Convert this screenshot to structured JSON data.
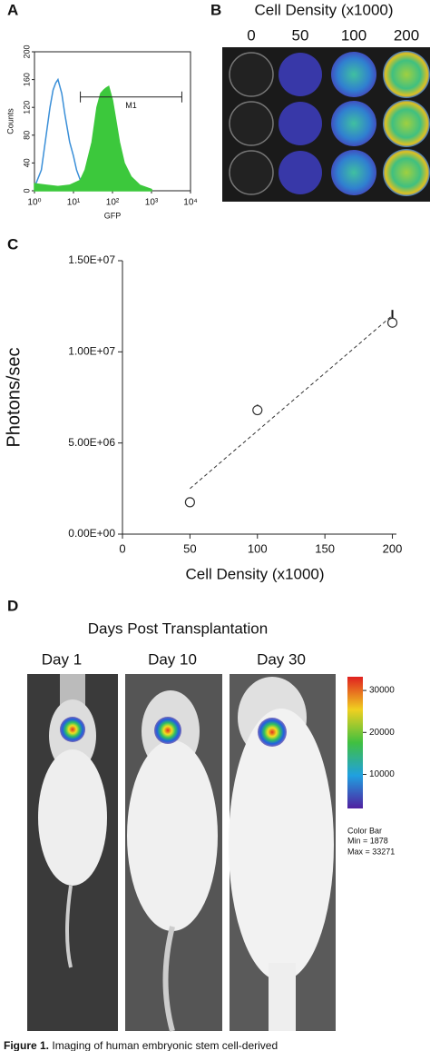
{
  "chart_data": [
    {
      "type": "line",
      "panel": "A",
      "xlabel": "GFP",
      "ylabel": "Counts",
      "xscale": "log",
      "xlim": [
        1,
        10000
      ],
      "xticks": [
        {
          "value": 1,
          "label": "10⁰"
        },
        {
          "value": 10,
          "label": "10¹"
        },
        {
          "value": 100,
          "label": "10²"
        },
        {
          "value": 1000,
          "label": "10³"
        },
        {
          "value": 10000,
          "label": "10⁴"
        }
      ],
      "ylim": [
        0,
        200
      ],
      "yticks": [
        0,
        40,
        80,
        120,
        160,
        200
      ],
      "series": [
        {
          "color": "#3a8fd8",
          "filled": false,
          "x": [
            1,
            1.5,
            2,
            2.5,
            3,
            3.5,
            4,
            5,
            6,
            8,
            10,
            12,
            15,
            20,
            30
          ],
          "values": [
            5,
            30,
            80,
            120,
            145,
            155,
            160,
            140,
            110,
            70,
            50,
            30,
            15,
            5,
            0
          ]
        },
        {
          "color": "#3cc83c",
          "filled": true,
          "x": [
            1,
            2,
            4,
            8,
            15,
            20,
            30,
            40,
            50,
            60,
            70,
            80,
            100,
            150,
            200,
            300,
            500,
            1000
          ],
          "values": [
            10,
            8,
            6,
            8,
            15,
            30,
            70,
            120,
            140,
            145,
            148,
            150,
            130,
            70,
            40,
            20,
            8,
            2
          ]
        }
      ],
      "gate": {
        "label": "M1",
        "x": [
          15,
          6000
        ],
        "y": 135
      }
    },
    {
      "type": "scatter",
      "panel": "C",
      "xlabel": "Cell Density (x1000)",
      "ylabel": "Photons/sec",
      "xlim": [
        0,
        203
      ],
      "xticks": [
        0,
        50,
        100,
        150,
        200
      ],
      "ylim": [
        0,
        15000000
      ],
      "yticks": [
        {
          "value": 0,
          "label": "0.00E+00"
        },
        {
          "value": 5000000,
          "label": "5.00E+06"
        },
        {
          "value": 10000000,
          "label": "1.00E+07"
        },
        {
          "value": 15000000,
          "label": "1.50E+07"
        }
      ],
      "x": [
        50,
        100,
        200
      ],
      "values": [
        1750000,
        6800000,
        11600000
      ],
      "errors": [
        100000,
        300000,
        700000
      ],
      "trendline": {
        "x": [
          50,
          200
        ],
        "values": [
          2500000,
          12000000
        ]
      }
    }
  ],
  "panel_b": {
    "label": "B",
    "title": "Cell Density (x1000)",
    "columns": [
      "0",
      "50",
      "100",
      "200"
    ]
  },
  "panel_d": {
    "label": "D",
    "title": "Days Post Transplantation",
    "days": [
      "Day 1",
      "Day 10",
      "Day 30"
    ],
    "colorbar": {
      "range": [
        1878,
        33271
      ],
      "ticks": [
        10000,
        20000,
        30000
      ],
      "name": "Color Bar",
      "min": "Min = 1878",
      "max": "Max = 33271"
    }
  },
  "caption": {
    "label": "Figure 1.",
    "text": "Imaging of human embryonic stem cell-derived"
  }
}
